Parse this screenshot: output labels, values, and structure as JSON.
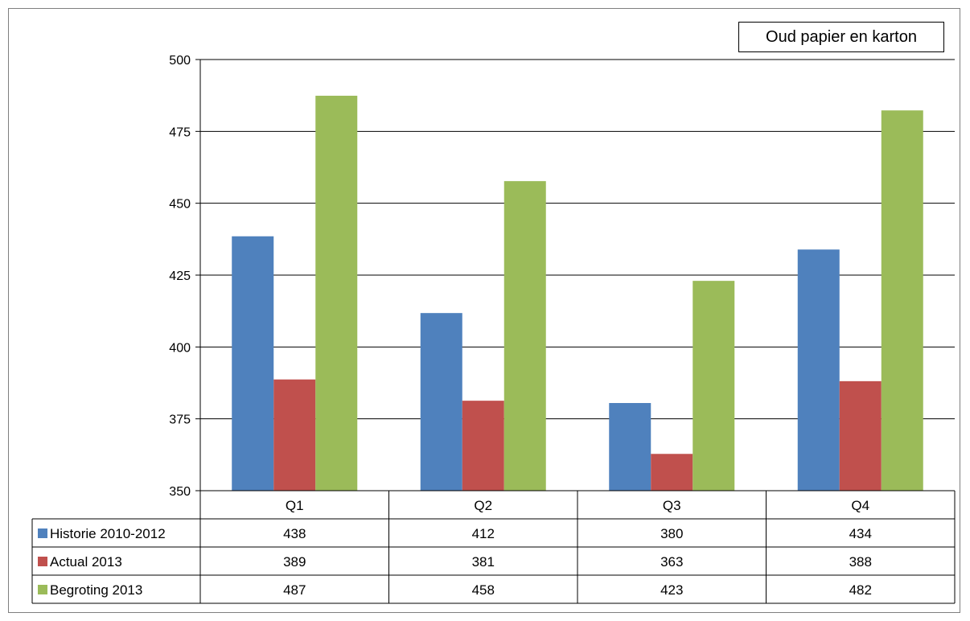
{
  "chart_data": {
    "type": "bar",
    "title": "Oud papier en karton",
    "categories": [
      "Q1",
      "Q2",
      "Q3",
      "Q4"
    ],
    "ylim": [
      350,
      500
    ],
    "yticks": [
      350,
      375,
      400,
      425,
      450,
      475,
      500
    ],
    "grid": true,
    "legend": "data-table",
    "series": [
      {
        "name": "Historie 2010-2012",
        "color": "#4f81bd",
        "values": [
          438.5,
          411.8,
          380.5,
          433.9
        ],
        "labels": [
          "438",
          "412",
          "380",
          "434"
        ]
      },
      {
        "name": "Actual 2013",
        "color": "#c0504d",
        "values": [
          388.7,
          381.3,
          362.8,
          388.1
        ],
        "labels": [
          "389",
          "381",
          "363",
          "388"
        ]
      },
      {
        "name": "Begroting 2013",
        "color": "#9bbb59",
        "values": [
          487.4,
          457.7,
          423.0,
          482.3
        ],
        "labels": [
          "487",
          "458",
          "423",
          "482"
        ]
      }
    ]
  }
}
